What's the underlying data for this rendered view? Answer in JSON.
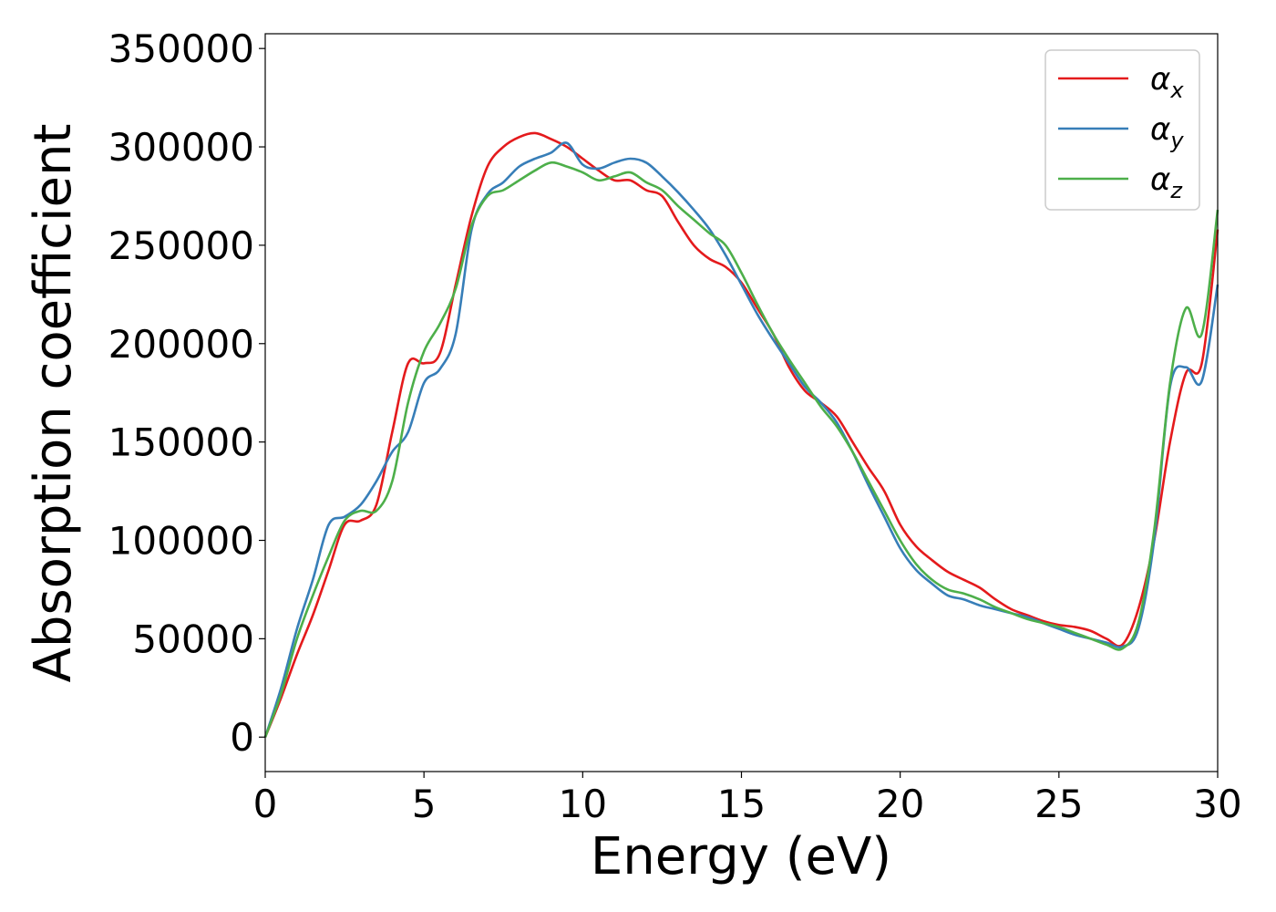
{
  "chart_data": {
    "type": "line",
    "title": "",
    "xlabel": "Energy (eV)",
    "ylabel": "Absorption coefficient",
    "xlim": [
      0,
      30
    ],
    "ylim": [
      -17500,
      357500
    ],
    "xticks": [
      0,
      5,
      10,
      15,
      20,
      25,
      30
    ],
    "xtick_labels": [
      "0",
      "5",
      "10",
      "15",
      "20",
      "25",
      "30"
    ],
    "yticks": [
      0,
      50000,
      100000,
      150000,
      200000,
      250000,
      300000,
      350000
    ],
    "ytick_labels": [
      "0",
      "50000",
      "100000",
      "150000",
      "200000",
      "250000",
      "300000",
      "350000"
    ],
    "grid": false,
    "legend": "top-right",
    "x": [
      0,
      0.5,
      1,
      1.5,
      2,
      2.5,
      3,
      3.5,
      4,
      4.5,
      5,
      5.5,
      6,
      6.5,
      7,
      7.5,
      8,
      8.5,
      9,
      9.5,
      10,
      10.5,
      11,
      11.5,
      12,
      12.5,
      13,
      13.5,
      14,
      14.5,
      15,
      15.5,
      16,
      16.5,
      17,
      17.5,
      18,
      18.5,
      19,
      19.5,
      20,
      20.5,
      21,
      21.5,
      22,
      22.5,
      23,
      23.5,
      24,
      24.5,
      25,
      25.5,
      26,
      26.5,
      27,
      27.5,
      28,
      28.5,
      29,
      29.5,
      30
    ],
    "series": [
      {
        "name": "α",
        "subscript": "x",
        "color": "#e41a1c",
        "values": [
          0,
          20000,
          42000,
          62000,
          85000,
          108000,
          110000,
          118000,
          155000,
          190000,
          190000,
          195000,
          230000,
          265000,
          290000,
          300000,
          305000,
          307000,
          304000,
          300000,
          294000,
          288000,
          283000,
          283000,
          278000,
          275000,
          262000,
          250000,
          243000,
          239000,
          231000,
          218000,
          205000,
          188000,
          176000,
          170000,
          163000,
          150000,
          137000,
          125000,
          108000,
          97000,
          90000,
          84000,
          80000,
          76000,
          70000,
          65000,
          62000,
          59000,
          57000,
          56000,
          54000,
          50000,
          47000,
          65000,
          100000,
          150000,
          185000,
          190000,
          258000
        ]
      },
      {
        "name": "α",
        "subscript": "y",
        "color": "#377eb8",
        "values": [
          0,
          25000,
          55000,
          80000,
          108000,
          112000,
          118000,
          130000,
          145000,
          155000,
          180000,
          187000,
          205000,
          258000,
          276000,
          282000,
          290000,
          294000,
          297000,
          302000,
          291000,
          289000,
          292000,
          294000,
          292000,
          285000,
          277000,
          268000,
          258000,
          245000,
          230000,
          215000,
          202000,
          190000,
          178000,
          170000,
          160000,
          145000,
          128000,
          112000,
          96000,
          85000,
          78000,
          72000,
          70000,
          67000,
          65000,
          63000,
          61000,
          58000,
          55000,
          52000,
          50000,
          48000,
          46000,
          55000,
          100000,
          178000,
          188000,
          181000,
          230000
        ]
      },
      {
        "name": "α",
        "subscript": "z",
        "color": "#4daf4a",
        "values": [
          0,
          22000,
          50000,
          72000,
          92000,
          110000,
          115000,
          115000,
          130000,
          170000,
          196000,
          210000,
          228000,
          260000,
          275000,
          278000,
          283000,
          288000,
          292000,
          290000,
          287000,
          283000,
          285000,
          287000,
          282000,
          278000,
          270000,
          263000,
          256000,
          250000,
          236000,
          220000,
          205000,
          192000,
          180000,
          168000,
          158000,
          145000,
          130000,
          115000,
          100000,
          88000,
          80000,
          75000,
          73000,
          70000,
          66000,
          63000,
          60000,
          58000,
          56000,
          53000,
          50000,
          47000,
          45000,
          58000,
          105000,
          180000,
          218000,
          205000,
          268000
        ]
      }
    ]
  }
}
